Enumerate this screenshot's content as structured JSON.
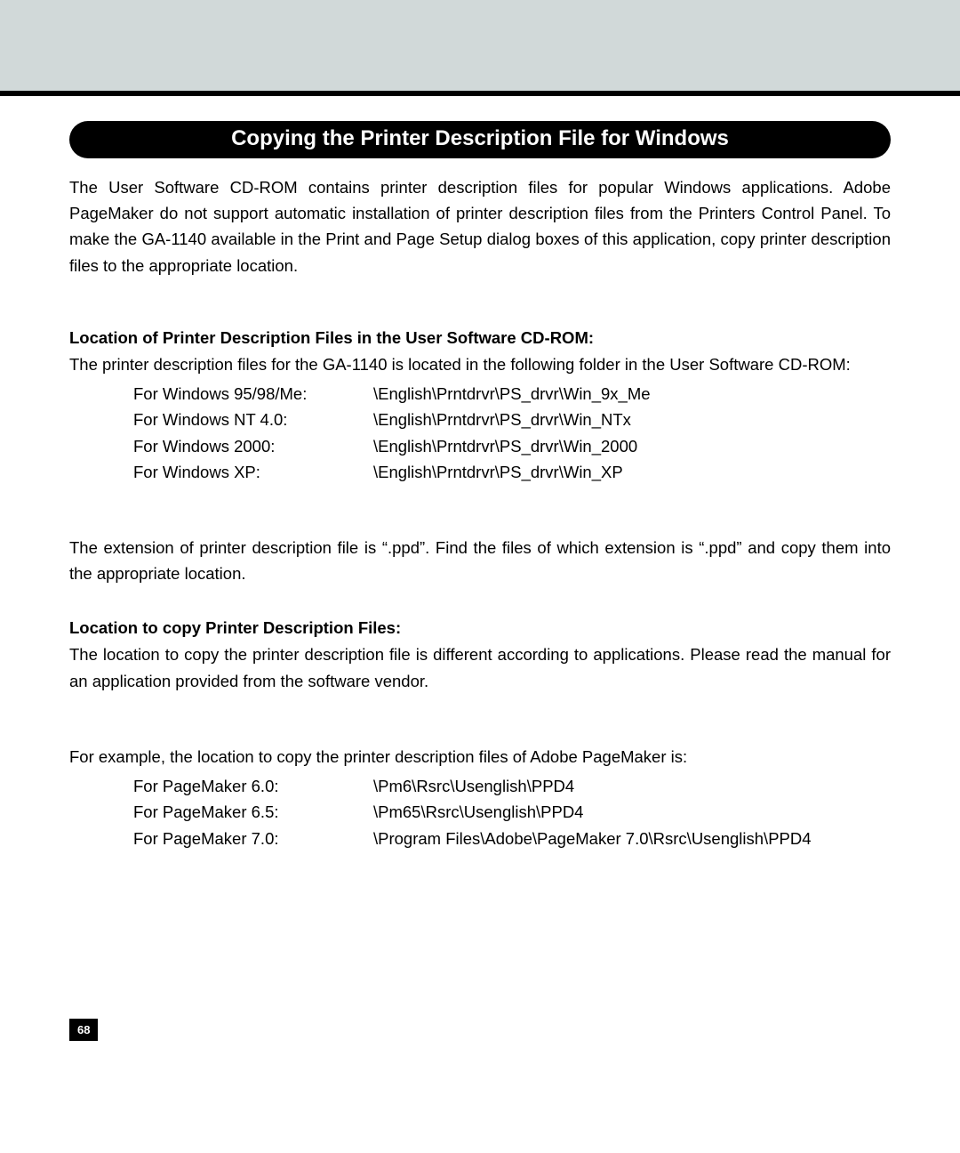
{
  "page": {
    "title": "Copying the Printer Description File for Windows",
    "intro": "The User Software CD-ROM contains printer description files for popular Windows applications.  Adobe PageMaker do not support automatic installation of printer description files from the Printers Control Panel.  To make the GA-1140 available in the Print and Page Setup dialog boxes of this application, copy printer description files to the appropriate location.",
    "page_number": "68"
  },
  "section1": {
    "heading": "Location of Printer Description Files in the User Software CD-ROM:",
    "intro": "The printer description files for the GA-1140 is located in the following folder in the User Software CD-ROM:",
    "rows": [
      {
        "label": "For Windows 95/98/Me:",
        "value": "\\English\\Prntdrvr\\PS_drvr\\Win_9x_Me"
      },
      {
        "label": "For Windows NT 4.0:",
        "value": "\\English\\Prntdrvr\\PS_drvr\\Win_NTx"
      },
      {
        "label": "For Windows 2000:",
        "value": "\\English\\Prntdrvr\\PS_drvr\\Win_2000"
      },
      {
        "label": "For Windows XP:",
        "value": "\\English\\Prntdrvr\\PS_drvr\\Win_XP"
      }
    ],
    "note": "The extension of printer description file is “.ppd”.  Find the files of which extension is “.ppd” and copy them into the appropriate location."
  },
  "section2": {
    "heading": "Location to copy Printer Description Files:",
    "intro": "The location to copy the printer description file is different according to applications.  Please read the manual for an application provided from the software vendor.",
    "example_intro": "For example, the location to copy the printer description files of Adobe PageMaker is:",
    "rows": [
      {
        "label": "For PageMaker 6.0:",
        "value": "\\Pm6\\Rsrc\\Usenglish\\PPD4"
      },
      {
        "label": "For PageMaker 6.5:",
        "value": "\\Pm65\\Rsrc\\Usenglish\\PPD4"
      },
      {
        "label": "For PageMaker 7.0:",
        "value": "\\Program Files\\Adobe\\PageMaker 7.0\\Rsrc\\Usenglish\\PPD4"
      }
    ]
  },
  "colors": {
    "header_gray": "#d1d9d9",
    "black": "#000000",
    "white": "#ffffff"
  }
}
